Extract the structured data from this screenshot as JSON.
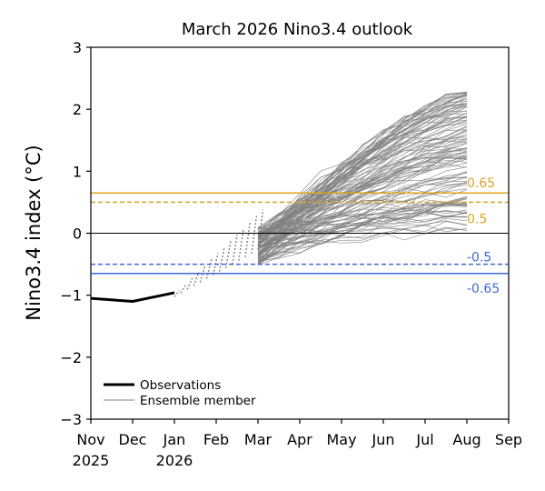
{
  "chart_data": {
    "type": "line",
    "title": "March 2026 Nino3.4 outlook",
    "xlabel": "",
    "ylabel": "Nino3.4 index (°C)",
    "ylim": [
      -3,
      3
    ],
    "xlim": [
      0,
      10
    ],
    "yticks": [
      {
        "v": 3,
        "label": "3"
      },
      {
        "v": 2,
        "label": "2"
      },
      {
        "v": 1,
        "label": "1"
      },
      {
        "v": 0,
        "label": "0"
      },
      {
        "v": -1,
        "label": "−1"
      },
      {
        "v": -2,
        "label": "−2"
      },
      {
        "v": -3,
        "label": "−3"
      }
    ],
    "xticks": [
      {
        "x": 0,
        "label": "Nov",
        "year": "2025"
      },
      {
        "x": 1,
        "label": "Dec",
        "year": ""
      },
      {
        "x": 2,
        "label": "Jan",
        "year": "2026"
      },
      {
        "x": 3,
        "label": "Feb",
        "year": ""
      },
      {
        "x": 4,
        "label": "Mar",
        "year": ""
      },
      {
        "x": 5,
        "label": "Apr",
        "year": ""
      },
      {
        "x": 6,
        "label": "May",
        "year": ""
      },
      {
        "x": 7,
        "label": "Jun",
        "year": ""
      },
      {
        "x": 8,
        "label": "Jul",
        "year": ""
      },
      {
        "x": 9,
        "label": "Aug",
        "year": ""
      },
      {
        "x": 10,
        "label": "Sep",
        "year": ""
      }
    ],
    "observations": {
      "name": "Observations",
      "x": [
        0,
        1,
        2
      ],
      "y": [
        -1.05,
        -1.1,
        -0.96
      ],
      "color": "#000000"
    },
    "ensemble": {
      "name": "Ensemble member",
      "count": 120,
      "color": "#808080",
      "start_x": 4,
      "end_x": 9,
      "start_range": [
        -0.52,
        0.1
      ],
      "end_range": [
        0.0,
        2.3
      ],
      "fan_x_range": [
        2.0,
        4.0
      ],
      "fan_y_range": [
        -0.95,
        0.08
      ]
    },
    "thresholds": [
      {
        "value": 0.65,
        "label": "0.65",
        "style": "solid",
        "color": "#DAA520"
      },
      {
        "value": 0.5,
        "label": "0.5",
        "style": "dashed",
        "color": "#DAA520"
      },
      {
        "value": -0.5,
        "label": "-0.5",
        "style": "dashed",
        "color": "#4169E1"
      },
      {
        "value": -0.65,
        "label": "-0.65",
        "style": "solid",
        "color": "#4169E1"
      }
    ],
    "zero_line": {
      "value": 0,
      "color": "#000000"
    },
    "legend": {
      "position": "lower-left",
      "entries": [
        "Observations",
        "Ensemble member"
      ]
    },
    "grid": false
  }
}
